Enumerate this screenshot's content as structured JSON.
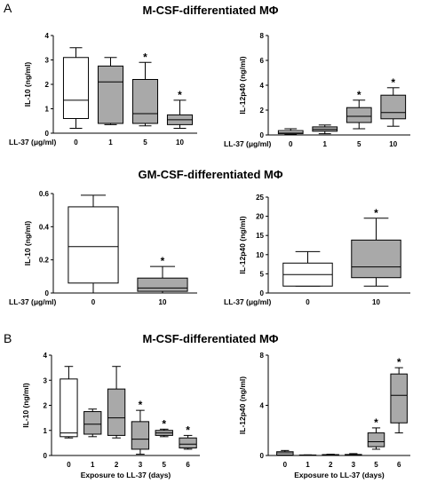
{
  "panel_labels": [
    "A",
    "B"
  ],
  "section_titles": [
    "M-CSF-differentiated MΦ",
    "GM-CSF-differentiated MΦ",
    "M-CSF-differentiated MΦ"
  ],
  "chart_data": [
    {
      "type": "box",
      "ylabel": "IL-10 (ng/ml)",
      "xlabel": "LL-37 (μg/ml)",
      "categories": [
        "0",
        "1",
        "5",
        "10"
      ],
      "boxes": [
        {
          "whislo": 0.2,
          "q1": 0.6,
          "med": 1.35,
          "q3": 3.1,
          "whishi": 3.5
        },
        {
          "whislo": 0.35,
          "q1": 0.4,
          "med": 2.1,
          "q3": 2.75,
          "whishi": 3.1
        },
        {
          "whislo": 0.3,
          "q1": 0.4,
          "med": 0.8,
          "q3": 2.2,
          "whishi": 2.9
        },
        {
          "whislo": 0.2,
          "q1": 0.35,
          "med": 0.55,
          "q3": 0.75,
          "whishi": 1.35
        }
      ],
      "colors": [
        "#ffffff",
        "#a9a9a9",
        "#a9a9a9",
        "#a9a9a9"
      ],
      "significance": [
        null,
        null,
        "*",
        "*"
      ],
      "ylim": [
        0,
        4
      ],
      "yticks": [
        0,
        1,
        2,
        3,
        4
      ]
    },
    {
      "type": "box",
      "ylabel": "IL-12p40 (ng/ml)",
      "xlabel": "LL-37 (μg/ml)",
      "categories": [
        "0",
        "1",
        "5",
        "10"
      ],
      "boxes": [
        {
          "whislo": 0.05,
          "q1": 0.1,
          "med": 0.2,
          "q3": 0.35,
          "whishi": 0.5
        },
        {
          "whislo": 0.1,
          "q1": 0.3,
          "med": 0.45,
          "q3": 0.65,
          "whishi": 0.8
        },
        {
          "whislo": 0.5,
          "q1": 1.0,
          "med": 1.5,
          "q3": 2.2,
          "whishi": 2.8
        },
        {
          "whislo": 0.7,
          "q1": 1.3,
          "med": 1.8,
          "q3": 3.2,
          "whishi": 3.8
        }
      ],
      "colors": [
        "#ffffff",
        "#a9a9a9",
        "#a9a9a9",
        "#a9a9a9"
      ],
      "significance": [
        null,
        null,
        "*",
        "*"
      ],
      "ylim": [
        0,
        8
      ],
      "yticks": [
        0,
        2,
        4,
        6,
        8
      ]
    },
    {
      "type": "box",
      "ylabel": "IL-10 (ng/ml)",
      "xlabel": "LL-37 (μg/ml)",
      "categories": [
        "0",
        "10"
      ],
      "boxes": [
        {
          "whislo": 0.0,
          "q1": 0.06,
          "med": 0.28,
          "q3": 0.52,
          "whishi": 0.59
        },
        {
          "whislo": 0.0,
          "q1": 0.01,
          "med": 0.03,
          "q3": 0.09,
          "whishi": 0.16
        }
      ],
      "colors": [
        "#ffffff",
        "#a9a9a9"
      ],
      "significance": [
        null,
        "*"
      ],
      "ylim": [
        0,
        0.6
      ],
      "yticks": [
        0,
        0.2,
        0.4,
        0.6
      ]
    },
    {
      "type": "box",
      "ylabel": "IL-12p40 (ng/ml)",
      "xlabel": "LL-37 (μg/ml)",
      "categories": [
        "0",
        "10"
      ],
      "boxes": [
        {
          "whislo": 1.8,
          "q1": 1.8,
          "med": 4.8,
          "q3": 7.8,
          "whishi": 10.8
        },
        {
          "whislo": 1.8,
          "q1": 4.0,
          "med": 6.8,
          "q3": 13.8,
          "whishi": 19.5
        }
      ],
      "colors": [
        "#ffffff",
        "#a9a9a9"
      ],
      "significance": [
        null,
        "*"
      ],
      "ylim": [
        0,
        25
      ],
      "yticks": [
        0,
        5,
        10,
        15,
        20,
        25
      ]
    },
    {
      "type": "box",
      "ylabel": "IL-10 (ng/ml)",
      "xlabel": "Exposure to LL-37 (days)",
      "categories": [
        "0",
        "1",
        "2",
        "3",
        "5",
        "6"
      ],
      "boxes": [
        {
          "whislo": 0.7,
          "q1": 0.75,
          "med": 0.9,
          "q3": 3.05,
          "whishi": 3.55
        },
        {
          "whislo": 0.75,
          "q1": 0.85,
          "med": 1.25,
          "q3": 1.75,
          "whishi": 1.85
        },
        {
          "whislo": 0.7,
          "q1": 0.8,
          "med": 1.5,
          "q3": 2.65,
          "whishi": 3.55
        },
        {
          "whislo": 0.05,
          "q1": 0.25,
          "med": 0.65,
          "q3": 1.35,
          "whishi": 1.8
        },
        {
          "whislo": 0.75,
          "q1": 0.8,
          "med": 0.9,
          "q3": 1.0,
          "whishi": 1.05
        },
        {
          "whislo": 0.25,
          "q1": 0.3,
          "med": 0.45,
          "q3": 0.7,
          "whishi": 0.8
        }
      ],
      "colors": [
        "#ffffff",
        "#a9a9a9",
        "#a9a9a9",
        "#a9a9a9",
        "#a9a9a9",
        "#a9a9a9"
      ],
      "significance": [
        null,
        null,
        null,
        "*",
        "*",
        "*"
      ],
      "ylim": [
        0,
        4
      ],
      "yticks": [
        0,
        1,
        2,
        3,
        4
      ]
    },
    {
      "type": "box",
      "ylabel": "IL-12p40 (ng/ml)",
      "xlabel": "Exposure to LL-37 (days)",
      "categories": [
        "0",
        "1",
        "2",
        "3",
        "5",
        "6"
      ],
      "boxes": [
        {
          "whislo": 0.0,
          "q1": 0.05,
          "med": 0.2,
          "q3": 0.3,
          "whishi": 0.4
        },
        {
          "whislo": 0.0,
          "q1": 0.01,
          "med": 0.02,
          "q3": 0.04,
          "whishi": 0.05
        },
        {
          "whislo": 0.0,
          "q1": 0.02,
          "med": 0.04,
          "q3": 0.07,
          "whishi": 0.1
        },
        {
          "whislo": 0.0,
          "q1": 0.02,
          "med": 0.05,
          "q3": 0.08,
          "whishi": 0.15
        },
        {
          "whislo": 0.5,
          "q1": 0.7,
          "med": 1.1,
          "q3": 1.8,
          "whishi": 2.2
        },
        {
          "whislo": 1.8,
          "q1": 2.6,
          "med": 4.8,
          "q3": 6.5,
          "whishi": 7.0
        }
      ],
      "colors": [
        "#ffffff",
        "#a9a9a9",
        "#a9a9a9",
        "#a9a9a9",
        "#a9a9a9",
        "#a9a9a9"
      ],
      "significance": [
        null,
        null,
        null,
        null,
        "*",
        "*"
      ],
      "ylim": [
        0,
        8
      ],
      "yticks": [
        0,
        4,
        8
      ]
    }
  ]
}
